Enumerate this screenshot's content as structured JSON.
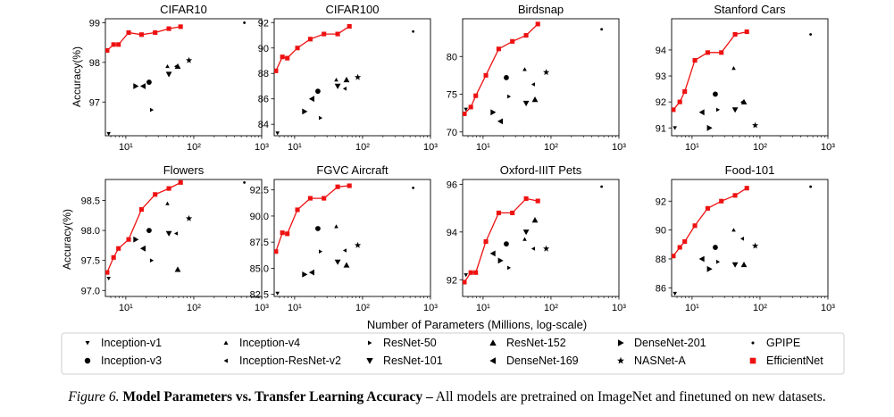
{
  "figure": {
    "xlabel": "Number of Parameters (Millions, log-scale)",
    "ylabel": "Accuracy(%)",
    "caption_number": "Figure 6.",
    "caption_title": "Model Parameters vs. Transfer Learning Accuracy –",
    "caption_text": "All models are pretrained on ImageNet and finetuned on new datasets."
  },
  "legend": {
    "items": [
      {
        "label": "Inception-v1",
        "marker": "tri_down_small"
      },
      {
        "label": "Inception-v4",
        "marker": "tri_up_small"
      },
      {
        "label": "ResNet-50",
        "marker": "tri_right_small"
      },
      {
        "label": "ResNet-152",
        "marker": "tri_up"
      },
      {
        "label": "DenseNet-201",
        "marker": "tri_right"
      },
      {
        "label": "GPIPE",
        "marker": "point"
      },
      {
        "label": "Inception-v3",
        "marker": "octagon"
      },
      {
        "label": "Inception-ResNet-v2",
        "marker": "tri_left_small"
      },
      {
        "label": "ResNet-101",
        "marker": "tri_down"
      },
      {
        "label": "DenseNet-169",
        "marker": "tri_left"
      },
      {
        "label": "NASNet-A",
        "marker": "star"
      },
      {
        "label": "EfficientNet",
        "marker": "square"
      }
    ]
  },
  "colors": {
    "efficientnet": "#ee1111",
    "markers": "#000000",
    "axes": "#000000"
  },
  "chart_data": [
    {
      "type": "scatter",
      "title": "CIFAR10",
      "xscale": "log",
      "xlim": [
        5,
        1000
      ],
      "ylim": [
        96.15,
        99.1
      ],
      "xticks": [
        10,
        100,
        1000
      ],
      "xtick_labels": [
        "10¹",
        "10²",
        "10³"
      ],
      "yticks": [
        97,
        98,
        99
      ],
      "ytick_labels": [
        "97",
        "98",
        "99"
      ],
      "show_ylabel": true,
      "baselines": [
        {
          "model": "Inception-v1",
          "x": 5.6,
          "y": 96.2
        },
        {
          "model": "Inception-v3",
          "x": 22,
          "y": 97.5
        },
        {
          "model": "Inception-v4",
          "x": 41,
          "y": 97.9
        },
        {
          "model": "Inception-ResNet-v2",
          "x": 55,
          "y": 97.9
        },
        {
          "model": "ResNet-50",
          "x": 24,
          "y": 96.8
        },
        {
          "model": "ResNet-101",
          "x": 43,
          "y": 97.7
        },
        {
          "model": "ResNet-152",
          "x": 58,
          "y": 97.9
        },
        {
          "model": "DenseNet-201",
          "x": 14,
          "y": 97.4
        },
        {
          "model": "DenseNet-169",
          "x": 18,
          "y": 97.4
        },
        {
          "model": "NASNet-A",
          "x": 85,
          "y": 98.05
        },
        {
          "model": "GPIPE",
          "x": 556,
          "y": 99.0
        }
      ],
      "efficientnet": {
        "x": [
          5.3,
          6.6,
          7.8,
          11,
          17,
          27,
          43,
          64
        ],
        "y": [
          98.3,
          98.45,
          98.45,
          98.75,
          98.7,
          98.75,
          98.85,
          98.9
        ]
      }
    },
    {
      "type": "scatter",
      "title": "CIFAR100",
      "xscale": "log",
      "xlim": [
        5,
        1000
      ],
      "ylim": [
        83.1,
        92.3
      ],
      "xticks": [
        10,
        100,
        1000
      ],
      "xtick_labels": [
        "10¹",
        "10²",
        "10³"
      ],
      "yticks": [
        84,
        86,
        88,
        90,
        92
      ],
      "ytick_labels": [
        "84",
        "86",
        "88",
        "90",
        "92"
      ],
      "show_ylabel": false,
      "baselines": [
        {
          "model": "Inception-v1",
          "x": 5.6,
          "y": 83.3
        },
        {
          "model": "Inception-v3",
          "x": 22,
          "y": 86.6
        },
        {
          "model": "Inception-v4",
          "x": 41,
          "y": 87.5
        },
        {
          "model": "Inception-ResNet-v2",
          "x": 55,
          "y": 86.8
        },
        {
          "model": "ResNet-50",
          "x": 24,
          "y": 84.5
        },
        {
          "model": "ResNet-101",
          "x": 43,
          "y": 87.0
        },
        {
          "model": "ResNet-152",
          "x": 58,
          "y": 87.5
        },
        {
          "model": "DenseNet-201",
          "x": 14,
          "y": 85.0
        },
        {
          "model": "DenseNet-169",
          "x": 18,
          "y": 86.0
        },
        {
          "model": "NASNet-A",
          "x": 85,
          "y": 87.7
        },
        {
          "model": "GPIPE",
          "x": 556,
          "y": 91.3
        }
      ],
      "efficientnet": {
        "x": [
          5.3,
          6.6,
          7.8,
          11,
          17,
          27,
          43,
          64
        ],
        "y": [
          88.2,
          89.3,
          89.2,
          90.0,
          90.7,
          91.1,
          91.1,
          91.7
        ]
      }
    },
    {
      "type": "scatter",
      "title": "Birdsnap",
      "xscale": "log",
      "xlim": [
        5,
        1000
      ],
      "ylim": [
        69.5,
        85
      ],
      "xticks": [
        10,
        100,
        1000
      ],
      "xtick_labels": [
        "10¹",
        "10²",
        "10³"
      ],
      "yticks": [
        70,
        75,
        80
      ],
      "ytick_labels": [
        "70",
        "75",
        "80"
      ],
      "show_ylabel": false,
      "baselines": [
        {
          "model": "Inception-v1",
          "x": 5.6,
          "y": 73.0
        },
        {
          "model": "Inception-v3",
          "x": 22,
          "y": 77.2
        },
        {
          "model": "Inception-v4",
          "x": 41,
          "y": 78.3
        },
        {
          "model": "Inception-ResNet-v2",
          "x": 55,
          "y": 76.3
        },
        {
          "model": "ResNet-50",
          "x": 24,
          "y": 74.7
        },
        {
          "model": "ResNet-101",
          "x": 43,
          "y": 73.8
        },
        {
          "model": "ResNet-152",
          "x": 58,
          "y": 74.3
        },
        {
          "model": "DenseNet-201",
          "x": 14,
          "y": 72.6
        },
        {
          "model": "DenseNet-169",
          "x": 18,
          "y": 71.4
        },
        {
          "model": "NASNet-A",
          "x": 85,
          "y": 77.9
        },
        {
          "model": "GPIPE",
          "x": 556,
          "y": 83.6
        }
      ],
      "efficientnet": {
        "x": [
          5.3,
          6.6,
          7.8,
          11,
          17,
          27,
          43,
          64
        ],
        "y": [
          72.4,
          73.3,
          74.8,
          77.5,
          81.0,
          82.0,
          82.8,
          84.3
        ]
      }
    },
    {
      "type": "scatter",
      "title": "Stanford Cars",
      "xscale": "log",
      "xlim": [
        5,
        1000
      ],
      "ylim": [
        90.7,
        95.2
      ],
      "xticks": [
        10,
        100,
        1000
      ],
      "xtick_labels": [
        "10¹",
        "10²",
        "10³"
      ],
      "yticks": [
        91,
        92,
        93,
        94
      ],
      "ytick_labels": [
        "91",
        "92",
        "93",
        "94"
      ],
      "show_ylabel": false,
      "baselines": [
        {
          "model": "Inception-v1",
          "x": 5.6,
          "y": 91.0
        },
        {
          "model": "Inception-v3",
          "x": 22,
          "y": 92.3
        },
        {
          "model": "Inception-v4",
          "x": 41,
          "y": 93.3
        },
        {
          "model": "Inception-ResNet-v2",
          "x": 55,
          "y": 92.0
        },
        {
          "model": "ResNet-50",
          "x": 24,
          "y": 91.7
        },
        {
          "model": "ResNet-101",
          "x": 43,
          "y": 91.7
        },
        {
          "model": "ResNet-152",
          "x": 58,
          "y": 92.0
        },
        {
          "model": "DenseNet-201",
          "x": 18,
          "y": 91.0
        },
        {
          "model": "DenseNet-169",
          "x": 14,
          "y": 91.6
        },
        {
          "model": "NASNet-A",
          "x": 85,
          "y": 91.1
        },
        {
          "model": "GPIPE",
          "x": 556,
          "y": 94.6
        }
      ],
      "efficientnet": {
        "x": [
          5.3,
          6.6,
          7.8,
          11,
          17,
          27,
          43,
          64
        ],
        "y": [
          91.7,
          92.0,
          92.4,
          93.6,
          93.9,
          93.9,
          94.6,
          94.7
        ]
      }
    },
    {
      "type": "scatter",
      "title": "Flowers",
      "xscale": "log",
      "xlim": [
        5,
        1000
      ],
      "ylim": [
        96.9,
        98.85
      ],
      "xticks": [
        10,
        100,
        1000
      ],
      "xtick_labels": [
        "10¹",
        "10²",
        "10³"
      ],
      "yticks": [
        97.0,
        97.5,
        98.0,
        98.5
      ],
      "ytick_labels": [
        "97.0",
        "97.5",
        "98.0",
        "98.5"
      ],
      "show_ylabel": true,
      "baselines": [
        {
          "model": "Inception-v1",
          "x": 5.6,
          "y": 97.2
        },
        {
          "model": "Inception-v3",
          "x": 22,
          "y": 98.0
        },
        {
          "model": "Inception-v4",
          "x": 41,
          "y": 98.45
        },
        {
          "model": "Inception-ResNet-v2",
          "x": 55,
          "y": 97.95
        },
        {
          "model": "ResNet-50",
          "x": 24,
          "y": 97.5
        },
        {
          "model": "ResNet-101",
          "x": 43,
          "y": 97.95
        },
        {
          "model": "ResNet-152",
          "x": 58,
          "y": 97.35
        },
        {
          "model": "DenseNet-201",
          "x": 14,
          "y": 97.85
        },
        {
          "model": "DenseNet-169",
          "x": 18,
          "y": 97.7
        },
        {
          "model": "NASNet-A",
          "x": 85,
          "y": 98.2
        },
        {
          "model": "GPIPE",
          "x": 556,
          "y": 98.8
        }
      ],
      "efficientnet": {
        "x": [
          5.3,
          6.6,
          7.8,
          11,
          17,
          27,
          43,
          64
        ],
        "y": [
          97.3,
          97.55,
          97.7,
          97.85,
          98.35,
          98.6,
          98.7,
          98.8
        ]
      }
    },
    {
      "type": "scatter",
      "title": "FGVC Aircraft",
      "xscale": "log",
      "xlim": [
        5,
        1000
      ],
      "ylim": [
        82.3,
        93.5
      ],
      "xticks": [
        10,
        100,
        1000
      ],
      "xtick_labels": [
        "10¹",
        "10²",
        "10³"
      ],
      "yticks": [
        82.5,
        85.0,
        87.5,
        90.0,
        92.5
      ],
      "ytick_labels": [
        "82.5",
        "85.0",
        "87.5",
        "90.0",
        "92.5"
      ],
      "show_ylabel": false,
      "baselines": [
        {
          "model": "Inception-v1",
          "x": 5.6,
          "y": 82.6
        },
        {
          "model": "Inception-v3",
          "x": 22,
          "y": 88.8
        },
        {
          "model": "Inception-v4",
          "x": 41,
          "y": 89.0
        },
        {
          "model": "Inception-ResNet-v2",
          "x": 55,
          "y": 86.7
        },
        {
          "model": "ResNet-50",
          "x": 24,
          "y": 86.6
        },
        {
          "model": "ResNet-101",
          "x": 43,
          "y": 85.6
        },
        {
          "model": "ResNet-152",
          "x": 58,
          "y": 85.3
        },
        {
          "model": "DenseNet-201",
          "x": 14,
          "y": 84.4
        },
        {
          "model": "DenseNet-169",
          "x": 18,
          "y": 84.6
        },
        {
          "model": "NASNet-A",
          "x": 85,
          "y": 87.2
        },
        {
          "model": "GPIPE",
          "x": 556,
          "y": 92.7
        }
      ],
      "efficientnet": {
        "x": [
          5.3,
          6.6,
          7.8,
          11,
          17,
          27,
          43,
          64
        ],
        "y": [
          86.6,
          88.4,
          88.3,
          90.6,
          91.7,
          91.7,
          92.8,
          92.9
        ]
      }
    },
    {
      "type": "scatter",
      "title": "Oxford-IIIT Pets",
      "xscale": "log",
      "xlim": [
        5,
        1000
      ],
      "ylim": [
        91.3,
        96.2
      ],
      "xticks": [
        10,
        100,
        1000
      ],
      "xtick_labels": [
        "10¹",
        "10²",
        "10³"
      ],
      "yticks": [
        92,
        94,
        96
      ],
      "ytick_labels": [
        "92",
        "94",
        "96"
      ],
      "show_ylabel": false,
      "baselines": [
        {
          "model": "Inception-v1",
          "x": 5.6,
          "y": 92.2
        },
        {
          "model": "Inception-v3",
          "x": 22,
          "y": 93.5
        },
        {
          "model": "Inception-v4",
          "x": 41,
          "y": 93.7
        },
        {
          "model": "Inception-ResNet-v2",
          "x": 55,
          "y": 93.3
        },
        {
          "model": "ResNet-50",
          "x": 24,
          "y": 92.5
        },
        {
          "model": "ResNet-101",
          "x": 43,
          "y": 94.0
        },
        {
          "model": "ResNet-152",
          "x": 58,
          "y": 94.5
        },
        {
          "model": "DenseNet-201",
          "x": 18,
          "y": 92.8
        },
        {
          "model": "DenseNet-169",
          "x": 14,
          "y": 93.1
        },
        {
          "model": "NASNet-A",
          "x": 85,
          "y": 93.3
        },
        {
          "model": "GPIPE",
          "x": 556,
          "y": 95.9
        }
      ],
      "efficientnet": {
        "x": [
          5.3,
          6.6,
          7.8,
          11,
          17,
          27,
          43,
          64
        ],
        "y": [
          91.9,
          92.3,
          92.3,
          93.6,
          94.8,
          94.8,
          95.4,
          95.3
        ]
      }
    },
    {
      "type": "scatter",
      "title": "Food-101",
      "xscale": "log",
      "xlim": [
        5,
        1000
      ],
      "ylim": [
        85.4,
        93.5
      ],
      "xticks": [
        10,
        100,
        1000
      ],
      "xtick_labels": [
        "10¹",
        "10²",
        "10³"
      ],
      "yticks": [
        86,
        88,
        90,
        92
      ],
      "ytick_labels": [
        "86",
        "88",
        "90",
        "92"
      ],
      "show_ylabel": false,
      "baselines": [
        {
          "model": "Inception-v1",
          "x": 5.6,
          "y": 85.6
        },
        {
          "model": "Inception-v3",
          "x": 22,
          "y": 88.8
        },
        {
          "model": "Inception-v4",
          "x": 41,
          "y": 90.0
        },
        {
          "model": "Inception-ResNet-v2",
          "x": 55,
          "y": 89.4
        },
        {
          "model": "ResNet-50",
          "x": 24,
          "y": 87.8
        },
        {
          "model": "ResNet-101",
          "x": 43,
          "y": 87.6
        },
        {
          "model": "ResNet-152",
          "x": 58,
          "y": 87.6
        },
        {
          "model": "DenseNet-201",
          "x": 18,
          "y": 87.3
        },
        {
          "model": "DenseNet-169",
          "x": 14,
          "y": 88.0
        },
        {
          "model": "NASNet-A",
          "x": 85,
          "y": 88.9
        },
        {
          "model": "GPIPE",
          "x": 556,
          "y": 93.0
        }
      ],
      "efficientnet": {
        "x": [
          5.3,
          6.6,
          7.8,
          11,
          17,
          27,
          43,
          64
        ],
        "y": [
          88.2,
          88.8,
          89.2,
          90.3,
          91.5,
          92.0,
          92.4,
          92.9
        ]
      }
    }
  ]
}
